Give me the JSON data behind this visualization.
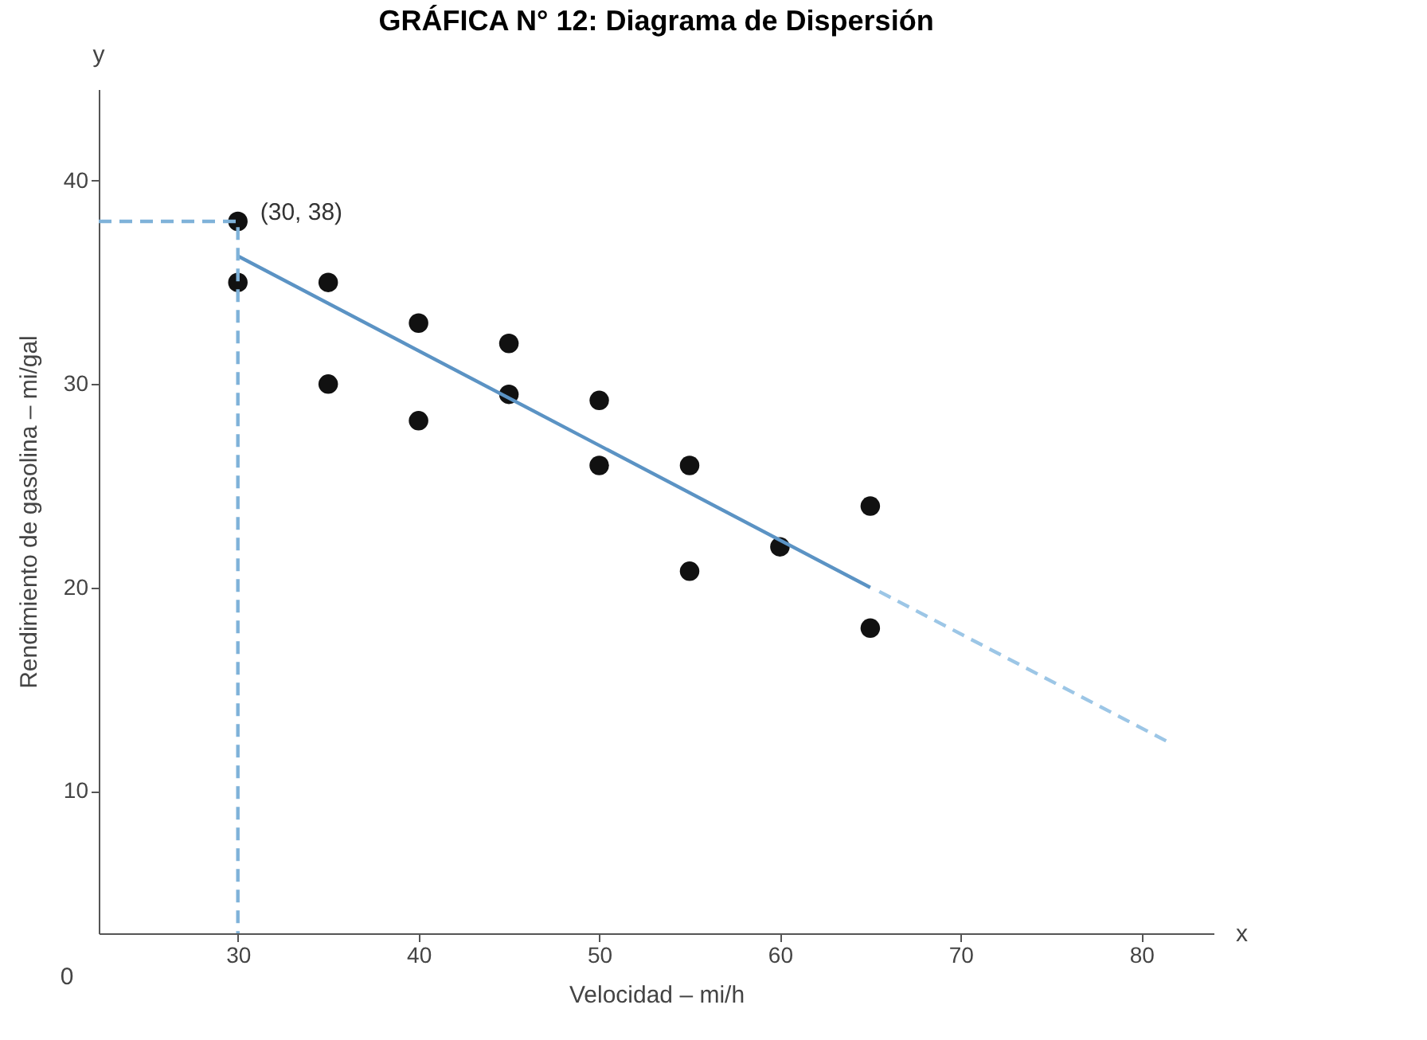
{
  "chart_data": {
    "type": "scatter",
    "title": "GRÁFICA N° 12: Diagrama de Dispersión",
    "xlabel": "Velocidad – mi/h",
    "ylabel": "Rendimiento de gasolina – mi/gal",
    "xlim": [
      22.3,
      84
    ],
    "ylim": [
      3,
      44.5
    ],
    "xticks": [
      30,
      40,
      50,
      60,
      70,
      80
    ],
    "yticks": [
      10,
      20,
      30,
      40
    ],
    "grid": false,
    "marker": "circle",
    "series": [
      {
        "color": "#111111",
        "x": [
          30,
          30,
          35,
          35,
          40,
          40,
          45,
          45,
          50,
          50,
          55,
          55,
          60,
          65,
          65
        ],
        "values": [
          38,
          35,
          35,
          30,
          33,
          28.2,
          32,
          29.5,
          29.2,
          26,
          26,
          20.8,
          22,
          24,
          18
        ]
      },
      {
        "type": "line",
        "color": "#5b93c4",
        "line_style": "solid",
        "marker": "none",
        "x": [
          30,
          65
        ],
        "values": [
          36.3,
          20
        ]
      },
      {
        "type": "line",
        "color": "#9cc6e6",
        "line_style": "dashed",
        "marker": "none",
        "x": [
          65.5,
          81.5
        ],
        "values": [
          19.8,
          12.4
        ]
      },
      {
        "type": "line",
        "color": "#7fb2d9",
        "line_style": "dashed",
        "marker": "none",
        "x": [
          22.3,
          30,
          30
        ],
        "values": [
          38,
          38,
          3
        ]
      }
    ],
    "annotations": [
      {
        "text": "(30, 38)",
        "x": 30,
        "y": 38
      },
      "x",
      "y",
      "0"
    ]
  }
}
